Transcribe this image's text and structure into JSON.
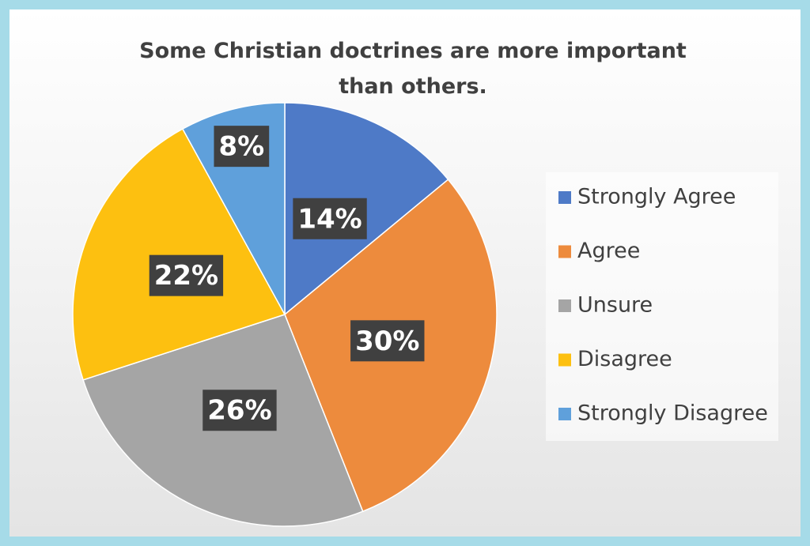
{
  "chart_data": {
    "type": "pie",
    "title": "Some Christian doctrines are more important than others.",
    "categories": [
      "Strongly Agree",
      "Agree",
      "Unsure",
      "Disagree",
      "Strongly Disagree"
    ],
    "values": [
      14,
      30,
      26,
      22,
      8
    ],
    "value_labels": [
      "14%",
      "30%",
      "26%",
      "22%",
      "8%"
    ],
    "colors": [
      "#4e7ac7",
      "#ed8b3d",
      "#a5a5a5",
      "#fdc010",
      "#5fa0db"
    ],
    "legend": "right"
  }
}
